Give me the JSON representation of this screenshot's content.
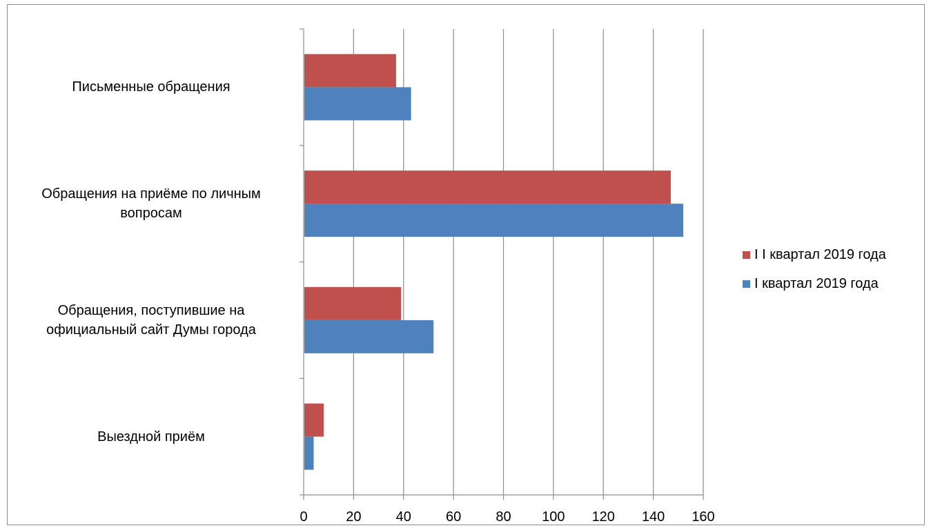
{
  "chart_data": {
    "type": "bar",
    "orientation": "horizontal",
    "categories": [
      "Письменные обращения",
      "Обращения на приёме по личным вопросам",
      "Обращения, поступившие на официальный сайт Думы города",
      "Выездной приём"
    ],
    "category_label_lines": [
      [
        "Письменные обращения"
      ],
      [
        "Обращения на приёме по личным",
        "вопросам"
      ],
      [
        "Обращения, поступившие на",
        "официальный сайт Думы города"
      ],
      [
        "Выездной приём"
      ]
    ],
    "series": [
      {
        "name": "I I квартал 2019 года",
        "color": "#c0504d",
        "values": [
          37,
          147,
          39,
          8
        ]
      },
      {
        "name": "I квартал 2019 года",
        "color": "#4f81bd",
        "values": [
          43,
          152,
          52,
          4
        ]
      }
    ],
    "xlim": [
      0,
      160
    ],
    "x_ticks": [
      "0",
      "20",
      "40",
      "60",
      "80",
      "100",
      "120",
      "140",
      "160"
    ],
    "grid": "vertical",
    "legend_position": "right"
  }
}
